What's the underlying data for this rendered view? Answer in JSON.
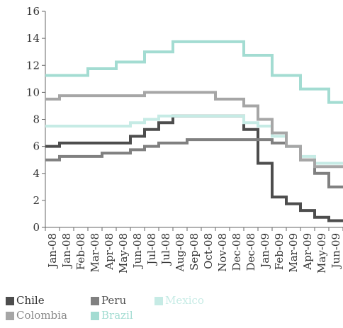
{
  "chart_data": {
    "type": "line",
    "title": "",
    "xlabel": "",
    "ylabel": "",
    "ylim": [
      0,
      16
    ],
    "y_ticks": [
      0,
      2,
      4,
      6,
      8,
      10,
      12,
      14,
      16
    ],
    "grid": false,
    "legend_position": "bottom-left",
    "categories": [
      "Jan-08",
      "Jan-08",
      "Feb-08",
      "Mar-08",
      "Apr-08",
      "May-08",
      "Jun-08",
      "Jul-08",
      "Jul-08",
      "Aug-08",
      "Sep-08",
      "Oct-08",
      "Nov-08",
      "Dec-08",
      "Dec-08",
      "Jan-09",
      "Feb-09",
      "Mar-09",
      "Apr-09",
      "May-09",
      "Jun-09"
    ],
    "series": [
      {
        "name": "Chile",
        "color": "#4d4d4d",
        "values": [
          6.0,
          6.25,
          6.25,
          6.25,
          6.25,
          6.25,
          6.75,
          7.25,
          7.75,
          8.25,
          8.25,
          8.25,
          8.25,
          8.25,
          7.25,
          4.75,
          2.25,
          1.75,
          1.25,
          0.75,
          0.5
        ]
      },
      {
        "name": "Peru",
        "color": "#808080",
        "values": [
          5.0,
          5.25,
          5.25,
          5.25,
          5.5,
          5.5,
          5.75,
          6.0,
          6.25,
          6.25,
          6.5,
          6.5,
          6.5,
          6.5,
          6.5,
          6.5,
          6.25,
          6.0,
          5.0,
          4.0,
          3.0
        ]
      },
      {
        "name": "Mexico",
        "color": "#c6ebe5",
        "values": [
          7.5,
          7.5,
          7.5,
          7.5,
          7.5,
          7.5,
          7.75,
          8.0,
          8.25,
          8.25,
          8.25,
          8.25,
          8.25,
          8.25,
          7.75,
          7.5,
          6.75,
          6.0,
          5.25,
          4.75,
          4.75
        ]
      },
      {
        "name": "Colombia",
        "color": "#a6a6a6",
        "values": [
          9.5,
          9.75,
          9.75,
          9.75,
          9.75,
          9.75,
          9.75,
          10.0,
          10.0,
          10.0,
          10.0,
          10.0,
          9.5,
          9.5,
          9.0,
          8.0,
          7.0,
          6.0,
          5.0,
          4.5,
          4.5
        ]
      },
      {
        "name": "Brazil",
        "color": "#a3dcd2",
        "values": [
          11.25,
          11.25,
          11.25,
          11.75,
          11.75,
          12.25,
          12.25,
          13.0,
          13.0,
          13.75,
          13.75,
          13.75,
          13.75,
          13.75,
          12.75,
          12.75,
          11.25,
          11.25,
          10.25,
          10.25,
          9.25
        ]
      }
    ]
  },
  "legend": {
    "rows": [
      [
        "Chile",
        "Peru",
        "Mexico"
      ],
      [
        "Colombia",
        "Brazil"
      ]
    ]
  }
}
